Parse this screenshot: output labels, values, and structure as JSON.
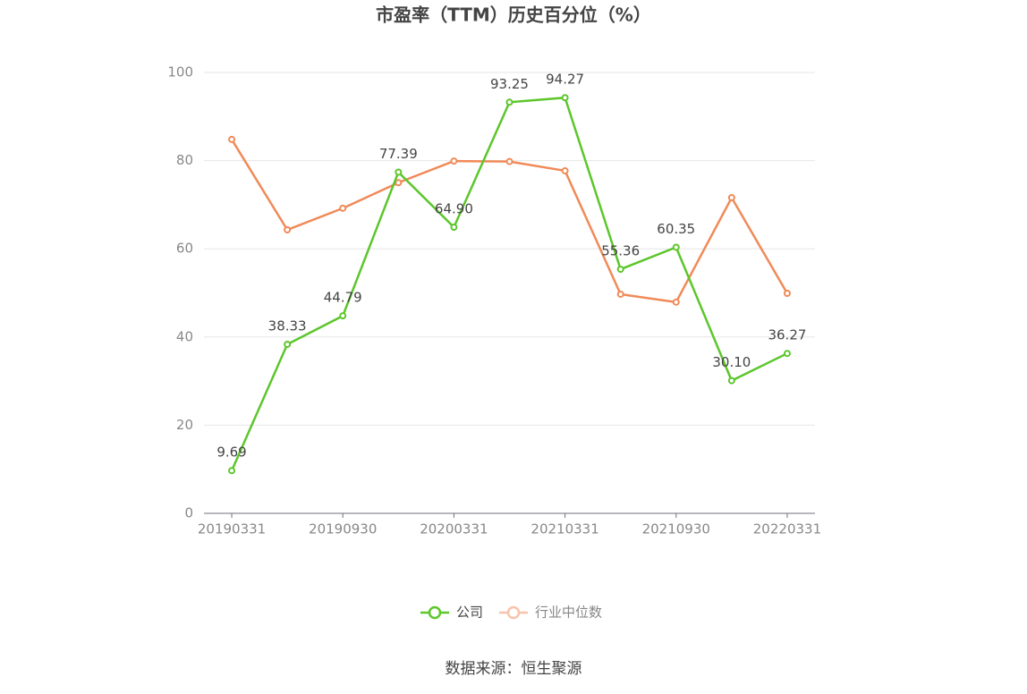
{
  "chart_data": {
    "type": "line",
    "title": "市盈率（TTM）历史百分位（%）",
    "categories": [
      "20190331",
      null,
      "20190930",
      null,
      "20200331",
      null,
      "20210331",
      null,
      "20210930",
      null,
      "20220331"
    ],
    "series": [
      {
        "name": "公司",
        "color": "#5cc62b",
        "values": [
          9.69,
          38.33,
          44.79,
          77.39,
          64.9,
          93.25,
          94.27,
          55.36,
          60.35,
          30.1,
          36.27
        ],
        "value_labels": [
          "9.69",
          "38.33",
          "44.79",
          "77.39",
          "64.90",
          "93.25",
          "94.27",
          "55.36",
          "60.35",
          "30.10",
          "36.27"
        ]
      },
      {
        "name": "行业中位数",
        "color": "#f08a58",
        "values": [
          84.8,
          64.3,
          69.2,
          75.0,
          79.9,
          79.8,
          77.7,
          49.7,
          47.9,
          71.6,
          49.9
        ]
      }
    ],
    "ylim": [
      0,
      100
    ],
    "yticks": [
      0,
      20,
      40,
      60,
      80,
      100
    ],
    "grid": true,
    "source": "数据来源：恒生聚源"
  }
}
